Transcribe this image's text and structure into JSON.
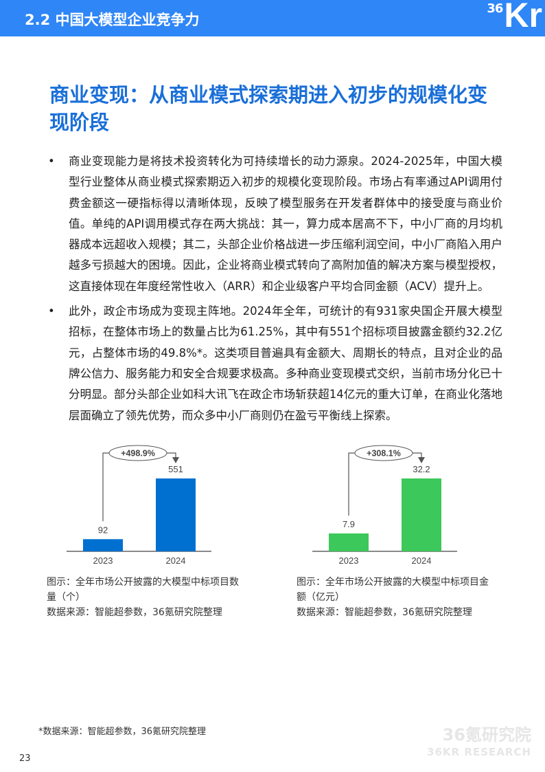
{
  "header": {
    "title": "2.2 中国大模型企业竞争力",
    "logo": "36Kr"
  },
  "title": "商业变现：从商业模式探索期进入初步的规模化变现阶段",
  "bullets": [
    "商业变现能力是将技术投资转化为可持续增长的动力源泉。2024-2025年，中国大模型行业整体从商业模式探索期迈入初步的规模化变现阶段。市场占有率通过API调用付费金额这一硬指标得以清晰体现，反映了模型服务在开发者群体中的接受度与商业价值。单纯的API调用模式存在两大挑战：其一，算力成本居高不下，中小厂商的月均机器成本远超收入规模；其二，头部企业价格战进一步压缩利润空间，中小厂商陷入用户越多亏损越大的困境。因此，企业将商业模式转向了高附加值的解决方案与模型授权，这直接体现在年度经常性收入（ARR）和企业级客户平均合同金额（ACV）提升上。",
    "此外，政企市场成为变现主阵地。2024年全年，可统计的有931家央国企开展大模型招标，在整体市场上的数量占比为61.25%，其中有551个招标项目披露金额约32.2亿元，占整体市场的49.8%*。这类项目普遍具有金额大、周期长的特点，且对企业的品牌公信力、服务能力和安全合规要求极高。多种商业变现模式交织，当前市场分化已十分明显。部分头部企业如科大讯飞在政企市场斩获超14亿元的重大订单，在商业化落地层面确立了领先优势，而众多中小厂商则仍在盈亏平衡线上探索。"
  ],
  "chart_data": [
    {
      "type": "bar",
      "categories": [
        "2023",
        "2024"
      ],
      "values": [
        92,
        551
      ],
      "value_labels": [
        "92",
        "551"
      ],
      "growth_label": "+498.9%",
      "color": "#0070d0",
      "ylim": [
        0,
        600
      ],
      "caption": "图示：全年市场公开披露的大模型中标项目数量（个）",
      "source": "数据来源：智能超参数，36氪研究院整理"
    },
    {
      "type": "bar",
      "categories": [
        "2023",
        "2024"
      ],
      "values": [
        7.9,
        32.2
      ],
      "value_labels": [
        "7.9",
        "32.2"
      ],
      "growth_label": "+308.1%",
      "color": "#3cc85a",
      "ylim": [
        0,
        35
      ],
      "caption": "图示：全年市场公开披露的大模型中标项目金额（亿元）",
      "source": "数据来源：智能超参数，36氪研究院整理"
    }
  ],
  "footnote": "*数据来源：智能超参数，36氪研究院整理",
  "page_number": "23",
  "watermark": {
    "cn": "36氪研究院",
    "en": "36KR RESEARCH"
  }
}
